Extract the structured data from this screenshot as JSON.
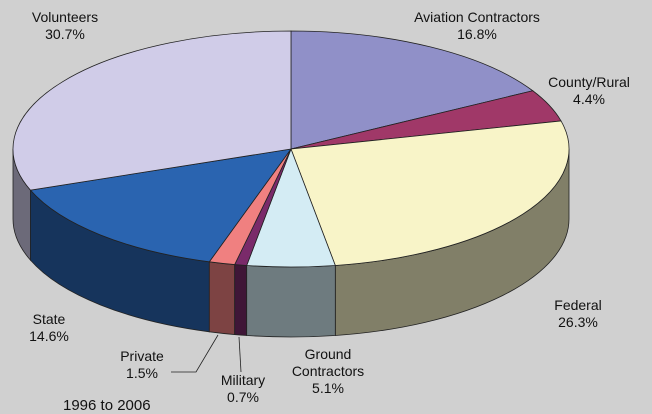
{
  "chart_data": {
    "type": "pie",
    "title": "",
    "slices": [
      {
        "name": "Aviation Contractors",
        "value": 16.8,
        "label_name": "Aviation Contractors",
        "label_value": "16.8%",
        "color": "#9090c8"
      },
      {
        "name": "County/Rural",
        "value": 4.4,
        "label_name": "County/Rural",
        "label_value": "4.4%",
        "color": "#a03868"
      },
      {
        "name": "Federal",
        "value": 26.3,
        "label_name": "Federal",
        "label_value": "26.3%",
        "color": "#f8f4c8"
      },
      {
        "name": "Ground Contractors",
        "value": 5.1,
        "label_name": "Ground\nContractors",
        "label_value": "5.1%",
        "color": "#d4ecf4"
      },
      {
        "name": "Military",
        "value": 0.7,
        "label_name": "Military",
        "label_value": "0.7%",
        "color": "#7a2a6a"
      },
      {
        "name": "Private",
        "value": 1.5,
        "label_name": "Private",
        "label_value": "1.5%",
        "color": "#f08080"
      },
      {
        "name": "State",
        "value": 14.6,
        "label_name": "State",
        "label_value": "14.6%",
        "color": "#2a64b0"
      },
      {
        "name": "Volunteers",
        "value": 30.7,
        "label_name": "Volunteers",
        "label_value": "30.7%",
        "color": "#d0cce8"
      }
    ],
    "start_angle_deg": -90,
    "style_3d": true
  },
  "footer": {
    "text": "1996 to 2006"
  }
}
